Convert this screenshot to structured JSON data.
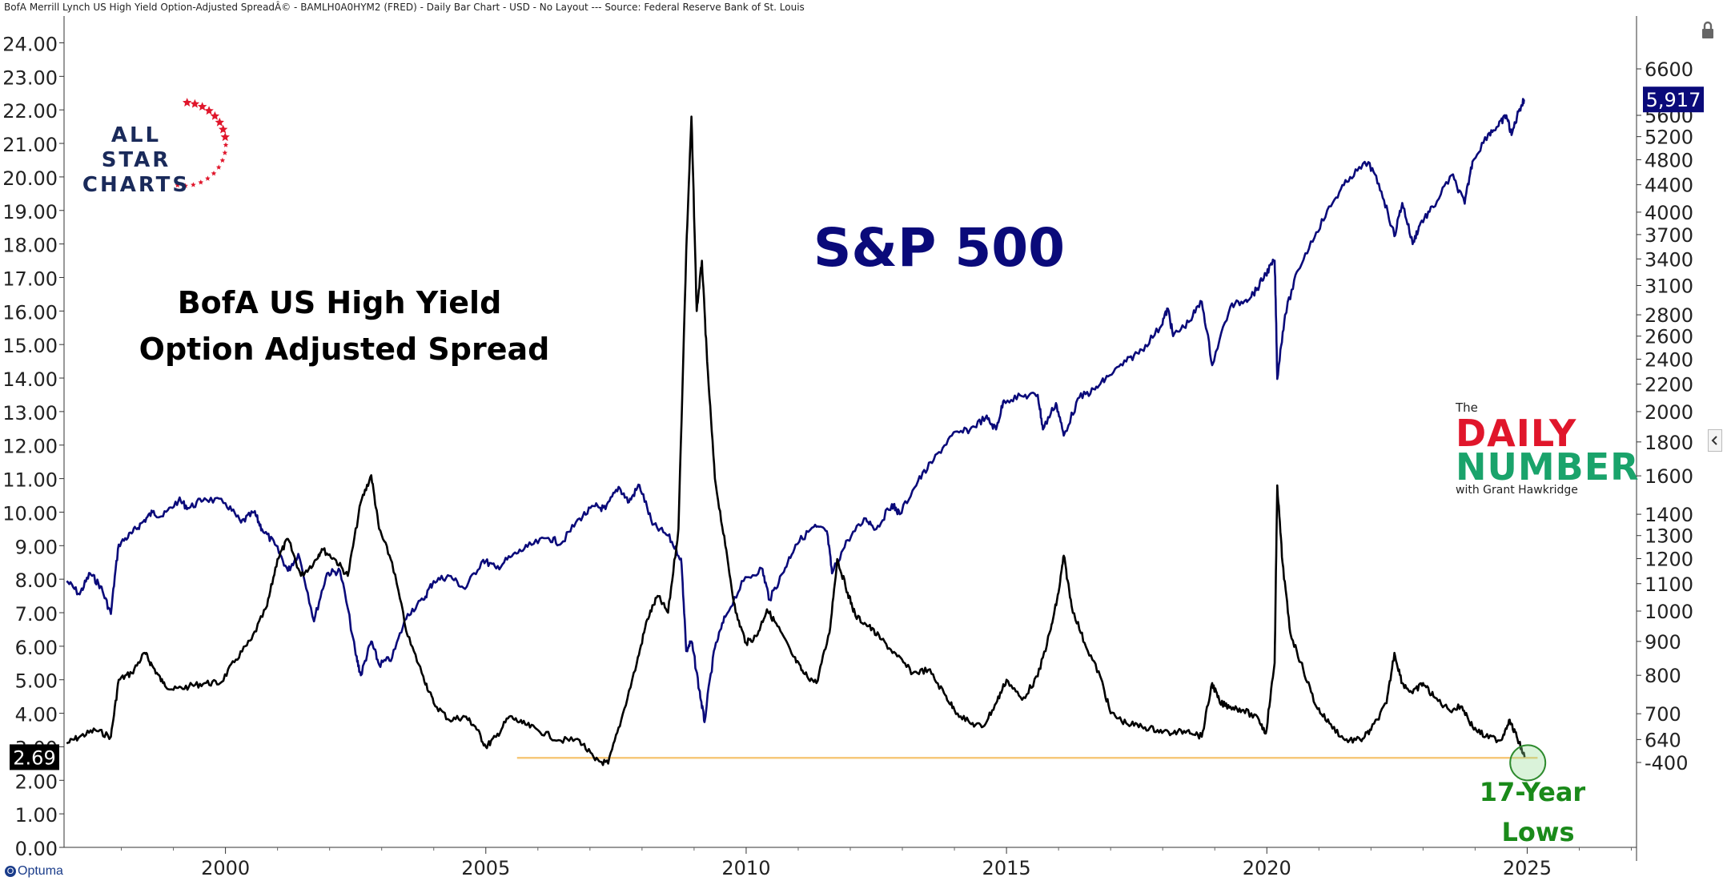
{
  "header": {
    "title": "BofA Merrill Lynch US High Yield Option-Adjusted SpreadÂ© - BAMLH0A0HYM2 (FRED) - Daily Bar Chart - USD - No Layout --- Source: Federal Reserve Bank of St. Louis"
  },
  "logos": {
    "allstar_line1": "ALL STAR",
    "allstar_line2": "CHARTS",
    "daily_the": "The",
    "daily_daily": "DAILY",
    "daily_number": "NUMBER",
    "daily_with": "with Grant Hawkridge",
    "optuma": "Optuma"
  },
  "icons": {
    "lock": "lock-icon",
    "collapse": "chevron-left-icon"
  },
  "colors": {
    "spread": "#000000",
    "spx": "#0a0a7a",
    "support_line": "#f6c87a",
    "circle": "#2e8b2e",
    "title_spx": "#0a0a7a",
    "title_lows": "#1a8a1a"
  },
  "chart_data": {
    "type": "line",
    "annotations": {
      "spx_title": "S&P 500",
      "spread_title_line1": "BofA US High Yield",
      "spread_title_line2": "Option Adjusted Spread",
      "lows_line1": "17-Year",
      "lows_line2": "Lows"
    },
    "x_axis": {
      "range": [
        1996.9,
        2027.1
      ],
      "ticks": [
        "2000",
        "2005",
        "2010",
        "2015",
        "2020",
        "2025"
      ],
      "tick_values": [
        2000,
        2005,
        2010,
        2015,
        2020,
        2025
      ]
    },
    "y_left": {
      "range": [
        0,
        24.8
      ],
      "ticks": [
        "0.00",
        "1.00",
        "2.00",
        "3.00",
        "4.00",
        "5.00",
        "6.00",
        "7.00",
        "8.00",
        "9.00",
        "10.00",
        "11.00",
        "12.00",
        "13.00",
        "14.00",
        "15.00",
        "16.00",
        "17.00",
        "18.00",
        "19.00",
        "20.00",
        "21.00",
        "22.00",
        "23.00",
        "24.00"
      ],
      "last_value_label": "2.69"
    },
    "y_right": {
      "scale": "log",
      "ticks": [
        "6600",
        "5600",
        "5200",
        "4800",
        "4400",
        "4000",
        "3700",
        "3400",
        "3100",
        "2800",
        "2600",
        "2400",
        "2200",
        "2000",
        "1800",
        "1600",
        "1400",
        "1300",
        "1200",
        "1100",
        "1000",
        "900",
        "800",
        "700",
        "640",
        "-400"
      ],
      "last_value_label": "5,917"
    },
    "support_level": 2.67,
    "series": [
      {
        "name": "BofA US High Yield Option Adjusted Spread",
        "axis": "left",
        "points": [
          [
            1996.95,
            3.1
          ],
          [
            1997.2,
            3.3
          ],
          [
            1997.5,
            3.5
          ],
          [
            1997.8,
            3.3
          ],
          [
            1997.95,
            5.0
          ],
          [
            1998.2,
            5.2
          ],
          [
            1998.45,
            5.8
          ],
          [
            1998.6,
            5.4
          ],
          [
            1998.8,
            4.9
          ],
          [
            1999.0,
            4.7
          ],
          [
            1999.3,
            4.8
          ],
          [
            1999.6,
            4.9
          ],
          [
            1999.9,
            4.9
          ],
          [
            2000.2,
            5.6
          ],
          [
            2000.5,
            6.2
          ],
          [
            2000.8,
            7.2
          ],
          [
            2001.0,
            8.6
          ],
          [
            2001.2,
            9.2
          ],
          [
            2001.45,
            8.1
          ],
          [
            2001.7,
            8.5
          ],
          [
            2001.85,
            8.9
          ],
          [
            2002.1,
            8.6
          ],
          [
            2002.35,
            8.1
          ],
          [
            2002.6,
            10.3
          ],
          [
            2002.8,
            11.1
          ],
          [
            2002.95,
            9.5
          ],
          [
            2003.2,
            8.5
          ],
          [
            2003.5,
            6.3
          ],
          [
            2003.8,
            5.1
          ],
          [
            2004.0,
            4.3
          ],
          [
            2004.3,
            3.8
          ],
          [
            2004.6,
            3.9
          ],
          [
            2004.8,
            3.6
          ],
          [
            2005.0,
            3.0
          ],
          [
            2005.2,
            3.3
          ],
          [
            2005.45,
            3.9
          ],
          [
            2005.7,
            3.7
          ],
          [
            2006.0,
            3.5
          ],
          [
            2006.4,
            3.2
          ],
          [
            2006.8,
            3.2
          ],
          [
            2007.1,
            2.6
          ],
          [
            2007.35,
            2.5
          ],
          [
            2007.6,
            3.8
          ],
          [
            2007.9,
            5.5
          ],
          [
            2008.1,
            6.8
          ],
          [
            2008.3,
            7.5
          ],
          [
            2008.5,
            7.0
          ],
          [
            2008.7,
            9.5
          ],
          [
            2008.85,
            17.8
          ],
          [
            2008.95,
            21.8
          ],
          [
            2009.05,
            16.0
          ],
          [
            2009.15,
            17.5
          ],
          [
            2009.25,
            14.5
          ],
          [
            2009.4,
            11.0
          ],
          [
            2009.6,
            9.0
          ],
          [
            2009.8,
            7.0
          ],
          [
            2010.0,
            6.1
          ],
          [
            2010.2,
            6.3
          ],
          [
            2010.4,
            7.1
          ],
          [
            2010.6,
            6.6
          ],
          [
            2010.9,
            5.7
          ],
          [
            2011.1,
            5.2
          ],
          [
            2011.35,
            4.9
          ],
          [
            2011.6,
            6.4
          ],
          [
            2011.75,
            8.6
          ],
          [
            2011.95,
            7.6
          ],
          [
            2012.1,
            6.9
          ],
          [
            2012.35,
            6.6
          ],
          [
            2012.6,
            6.2
          ],
          [
            2012.9,
            5.7
          ],
          [
            2013.2,
            5.2
          ],
          [
            2013.5,
            5.3
          ],
          [
            2013.8,
            4.6
          ],
          [
            2014.0,
            4.1
          ],
          [
            2014.3,
            3.7
          ],
          [
            2014.55,
            3.6
          ],
          [
            2014.8,
            4.3
          ],
          [
            2015.0,
            5.0
          ],
          [
            2015.3,
            4.4
          ],
          [
            2015.6,
            5.1
          ],
          [
            2015.85,
            6.5
          ],
          [
            2016.0,
            7.6
          ],
          [
            2016.1,
            8.7
          ],
          [
            2016.25,
            7.2
          ],
          [
            2016.5,
            6.1
          ],
          [
            2016.8,
            5.1
          ],
          [
            2017.0,
            4.0
          ],
          [
            2017.3,
            3.7
          ],
          [
            2017.6,
            3.6
          ],
          [
            2017.9,
            3.5
          ],
          [
            2018.2,
            3.4
          ],
          [
            2018.5,
            3.5
          ],
          [
            2018.75,
            3.3
          ],
          [
            2018.95,
            4.9
          ],
          [
            2019.1,
            4.3
          ],
          [
            2019.3,
            4.2
          ],
          [
            2019.55,
            4.1
          ],
          [
            2019.85,
            3.8
          ],
          [
            2019.98,
            3.4
          ],
          [
            2020.15,
            5.5
          ],
          [
            2020.2,
            10.8
          ],
          [
            2020.3,
            8.5
          ],
          [
            2020.45,
            6.4
          ],
          [
            2020.7,
            5.3
          ],
          [
            2020.95,
            4.2
          ],
          [
            2021.2,
            3.7
          ],
          [
            2021.5,
            3.2
          ],
          [
            2021.8,
            3.2
          ],
          [
            2022.0,
            3.5
          ],
          [
            2022.3,
            4.3
          ],
          [
            2022.45,
            5.8
          ],
          [
            2022.6,
            4.9
          ],
          [
            2022.8,
            4.6
          ],
          [
            2023.0,
            4.9
          ],
          [
            2023.2,
            4.5
          ],
          [
            2023.5,
            4.1
          ],
          [
            2023.75,
            4.2
          ],
          [
            2023.95,
            3.6
          ],
          [
            2024.2,
            3.3
          ],
          [
            2024.5,
            3.2
          ],
          [
            2024.65,
            3.8
          ],
          [
            2024.8,
            3.3
          ],
          [
            2024.95,
            2.69
          ]
        ]
      },
      {
        "name": "S&P 500",
        "axis": "right",
        "points": [
          [
            1996.95,
            1110
          ],
          [
            1997.2,
            1060
          ],
          [
            1997.4,
            1140
          ],
          [
            1997.6,
            1090
          ],
          [
            1997.8,
            990
          ],
          [
            1997.95,
            1260
          ],
          [
            1998.2,
            1310
          ],
          [
            1998.4,
            1360
          ],
          [
            1998.6,
            1410
          ],
          [
            1998.8,
            1390
          ],
          [
            1999.1,
            1470
          ],
          [
            1999.3,
            1430
          ],
          [
            1999.6,
            1480
          ],
          [
            2000.0,
            1455
          ],
          [
            2000.3,
            1360
          ],
          [
            2000.55,
            1410
          ],
          [
            2000.7,
            1330
          ],
          [
            2000.95,
            1260
          ],
          [
            2001.2,
            1150
          ],
          [
            2001.4,
            1220
          ],
          [
            2001.7,
            965
          ],
          [
            2001.95,
            1140
          ],
          [
            2002.2,
            1150
          ],
          [
            2002.5,
            860
          ],
          [
            2002.6,
            800
          ],
          [
            2002.8,
            900
          ],
          [
            2002.95,
            830
          ],
          [
            2003.2,
            850
          ],
          [
            2003.5,
            990
          ],
          [
            2003.8,
            1040
          ],
          [
            2004.0,
            1110
          ],
          [
            2004.3,
            1130
          ],
          [
            2004.6,
            1080
          ],
          [
            2004.95,
            1195
          ],
          [
            2005.2,
            1160
          ],
          [
            2005.5,
            1210
          ],
          [
            2005.8,
            1250
          ],
          [
            2006.2,
            1290
          ],
          [
            2006.45,
            1265
          ],
          [
            2006.8,
            1380
          ],
          [
            2007.1,
            1440
          ],
          [
            2007.3,
            1425
          ],
          [
            2007.55,
            1540
          ],
          [
            2007.75,
            1460
          ],
          [
            2007.95,
            1550
          ],
          [
            2008.2,
            1350
          ],
          [
            2008.5,
            1300
          ],
          [
            2008.75,
            1200
          ],
          [
            2008.85,
            870
          ],
          [
            2008.95,
            900
          ],
          [
            2009.1,
            760
          ],
          [
            2009.2,
            680
          ],
          [
            2009.4,
            880
          ],
          [
            2009.6,
            980
          ],
          [
            2009.95,
            1110
          ],
          [
            2010.3,
            1160
          ],
          [
            2010.45,
            1040
          ],
          [
            2010.7,
            1140
          ],
          [
            2010.95,
            1260
          ],
          [
            2011.3,
            1340
          ],
          [
            2011.55,
            1320
          ],
          [
            2011.65,
            1140
          ],
          [
            2011.95,
            1280
          ],
          [
            2012.3,
            1380
          ],
          [
            2012.5,
            1330
          ],
          [
            2012.8,
            1450
          ],
          [
            2012.95,
            1400
          ],
          [
            2013.3,
            1570
          ],
          [
            2013.6,
            1690
          ],
          [
            2013.95,
            1840
          ],
          [
            2014.3,
            1880
          ],
          [
            2014.6,
            1960
          ],
          [
            2014.8,
            1880
          ],
          [
            2014.95,
            2080
          ],
          [
            2015.3,
            2110
          ],
          [
            2015.6,
            2120
          ],
          [
            2015.7,
            1880
          ],
          [
            2015.95,
            2060
          ],
          [
            2016.1,
            1840
          ],
          [
            2016.4,
            2100
          ],
          [
            2016.7,
            2160
          ],
          [
            2016.95,
            2260
          ],
          [
            2017.3,
            2380
          ],
          [
            2017.6,
            2480
          ],
          [
            2017.95,
            2680
          ],
          [
            2018.1,
            2860
          ],
          [
            2018.2,
            2600
          ],
          [
            2018.5,
            2730
          ],
          [
            2018.75,
            2930
          ],
          [
            2018.95,
            2350
          ],
          [
            2019.3,
            2880
          ],
          [
            2019.6,
            2950
          ],
          [
            2019.8,
            3050
          ],
          [
            2019.98,
            3230
          ],
          [
            2020.15,
            3380
          ],
          [
            2020.2,
            2240
          ],
          [
            2020.35,
            2800
          ],
          [
            2020.6,
            3270
          ],
          [
            2020.95,
            3730
          ],
          [
            2021.3,
            4180
          ],
          [
            2021.6,
            4520
          ],
          [
            2021.95,
            4760
          ],
          [
            2022.2,
            4300
          ],
          [
            2022.45,
            3680
          ],
          [
            2022.6,
            4130
          ],
          [
            2022.8,
            3580
          ],
          [
            2022.95,
            3850
          ],
          [
            2023.2,
            4070
          ],
          [
            2023.55,
            4550
          ],
          [
            2023.8,
            4120
          ],
          [
            2023.95,
            4770
          ],
          [
            2024.25,
            5250
          ],
          [
            2024.45,
            5400
          ],
          [
            2024.6,
            5600
          ],
          [
            2024.7,
            5230
          ],
          [
            2024.85,
            5720
          ],
          [
            2024.95,
            5917
          ]
        ]
      }
    ]
  }
}
